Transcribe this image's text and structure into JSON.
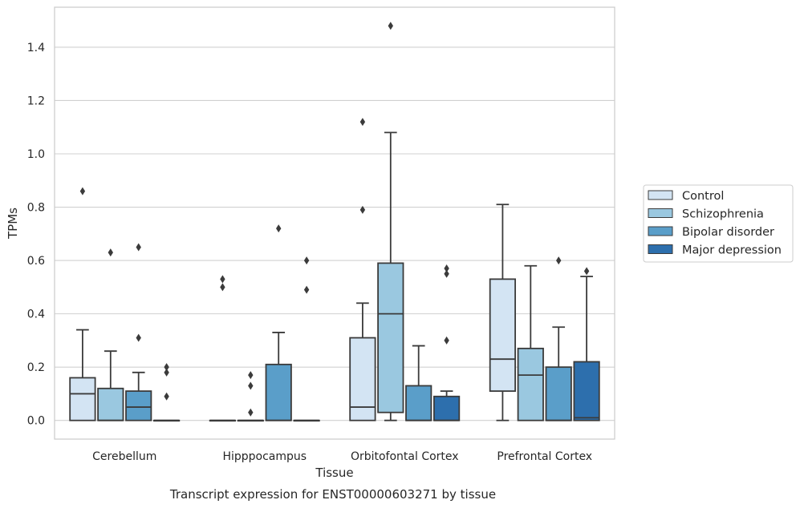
{
  "chart_data": {
    "type": "box",
    "caption": "Transcript expression for ENST00000603271 by tissue",
    "xlabel": "Tissue",
    "ylabel": "TPMs",
    "ylim": [
      -0.07,
      1.55
    ],
    "yticks": [
      "0.0",
      "0.2",
      "0.4",
      "0.6",
      "0.8",
      "1.0",
      "1.2",
      "1.4"
    ],
    "grid": true,
    "legend_position": "right",
    "categories": [
      "Cerebellum",
      "Hipppocampus",
      "Orbitofontal Cortex",
      "Prefrontal Cortex"
    ],
    "series": [
      {
        "name": "Control",
        "color": "#d3e4f3",
        "boxes": [
          {
            "whislo": 0.0,
            "q1": 0.0,
            "med": 0.1,
            "q3": 0.16,
            "whishi": 0.34,
            "fliers": [
              0.86
            ]
          },
          {
            "whislo": 0.0,
            "q1": 0.0,
            "med": 0.0,
            "q3": 0.0,
            "whishi": 0.0,
            "fliers": [
              0.5,
              0.53
            ]
          },
          {
            "whislo": 0.0,
            "q1": 0.0,
            "med": 0.05,
            "q3": 0.31,
            "whishi": 0.44,
            "fliers": [
              0.79,
              1.12
            ]
          },
          {
            "whislo": 0.0,
            "q1": 0.11,
            "med": 0.23,
            "q3": 0.53,
            "whishi": 0.81,
            "fliers": []
          }
        ]
      },
      {
        "name": "Schizophrenia",
        "color": "#9ac8e0",
        "boxes": [
          {
            "whislo": 0.0,
            "q1": 0.0,
            "med": 0.0,
            "q3": 0.12,
            "whishi": 0.26,
            "fliers": [
              0.63
            ]
          },
          {
            "whislo": 0.0,
            "q1": 0.0,
            "med": 0.0,
            "q3": 0.0,
            "whishi": 0.0,
            "fliers": [
              0.03,
              0.13,
              0.17
            ]
          },
          {
            "whislo": 0.0,
            "q1": 0.03,
            "med": 0.4,
            "q3": 0.59,
            "whishi": 1.08,
            "fliers": [
              1.48
            ]
          },
          {
            "whislo": 0.0,
            "q1": 0.0,
            "med": 0.17,
            "q3": 0.27,
            "whishi": 0.58,
            "fliers": []
          }
        ]
      },
      {
        "name": "Bipolar disorder",
        "color": "#5a9ec9",
        "boxes": [
          {
            "whislo": 0.0,
            "q1": 0.0,
            "med": 0.05,
            "q3": 0.11,
            "whishi": 0.18,
            "fliers": [
              0.31,
              0.65
            ]
          },
          {
            "whislo": 0.0,
            "q1": 0.0,
            "med": 0.0,
            "q3": 0.21,
            "whishi": 0.33,
            "fliers": [
              0.72
            ]
          },
          {
            "whislo": 0.0,
            "q1": 0.0,
            "med": 0.0,
            "q3": 0.13,
            "whishi": 0.28,
            "fliers": []
          },
          {
            "whislo": 0.0,
            "q1": 0.0,
            "med": 0.0,
            "q3": 0.2,
            "whishi": 0.35,
            "fliers": [
              0.6
            ]
          }
        ]
      },
      {
        "name": "Major depression",
        "color": "#2d6fad",
        "boxes": [
          {
            "whislo": 0.0,
            "q1": 0.0,
            "med": 0.0,
            "q3": 0.0,
            "whishi": 0.0,
            "fliers": [
              0.09,
              0.18,
              0.2
            ]
          },
          {
            "whislo": 0.0,
            "q1": 0.0,
            "med": 0.0,
            "q3": 0.0,
            "whishi": 0.0,
            "fliers": [
              0.49,
              0.6
            ]
          },
          {
            "whislo": 0.0,
            "q1": 0.0,
            "med": 0.0,
            "q3": 0.09,
            "whishi": 0.11,
            "fliers": [
              0.3,
              0.55,
              0.57
            ]
          },
          {
            "whislo": 0.0,
            "q1": 0.0,
            "med": 0.01,
            "q3": 0.22,
            "whishi": 0.54,
            "fliers": [
              0.56
            ]
          }
        ]
      }
    ]
  }
}
